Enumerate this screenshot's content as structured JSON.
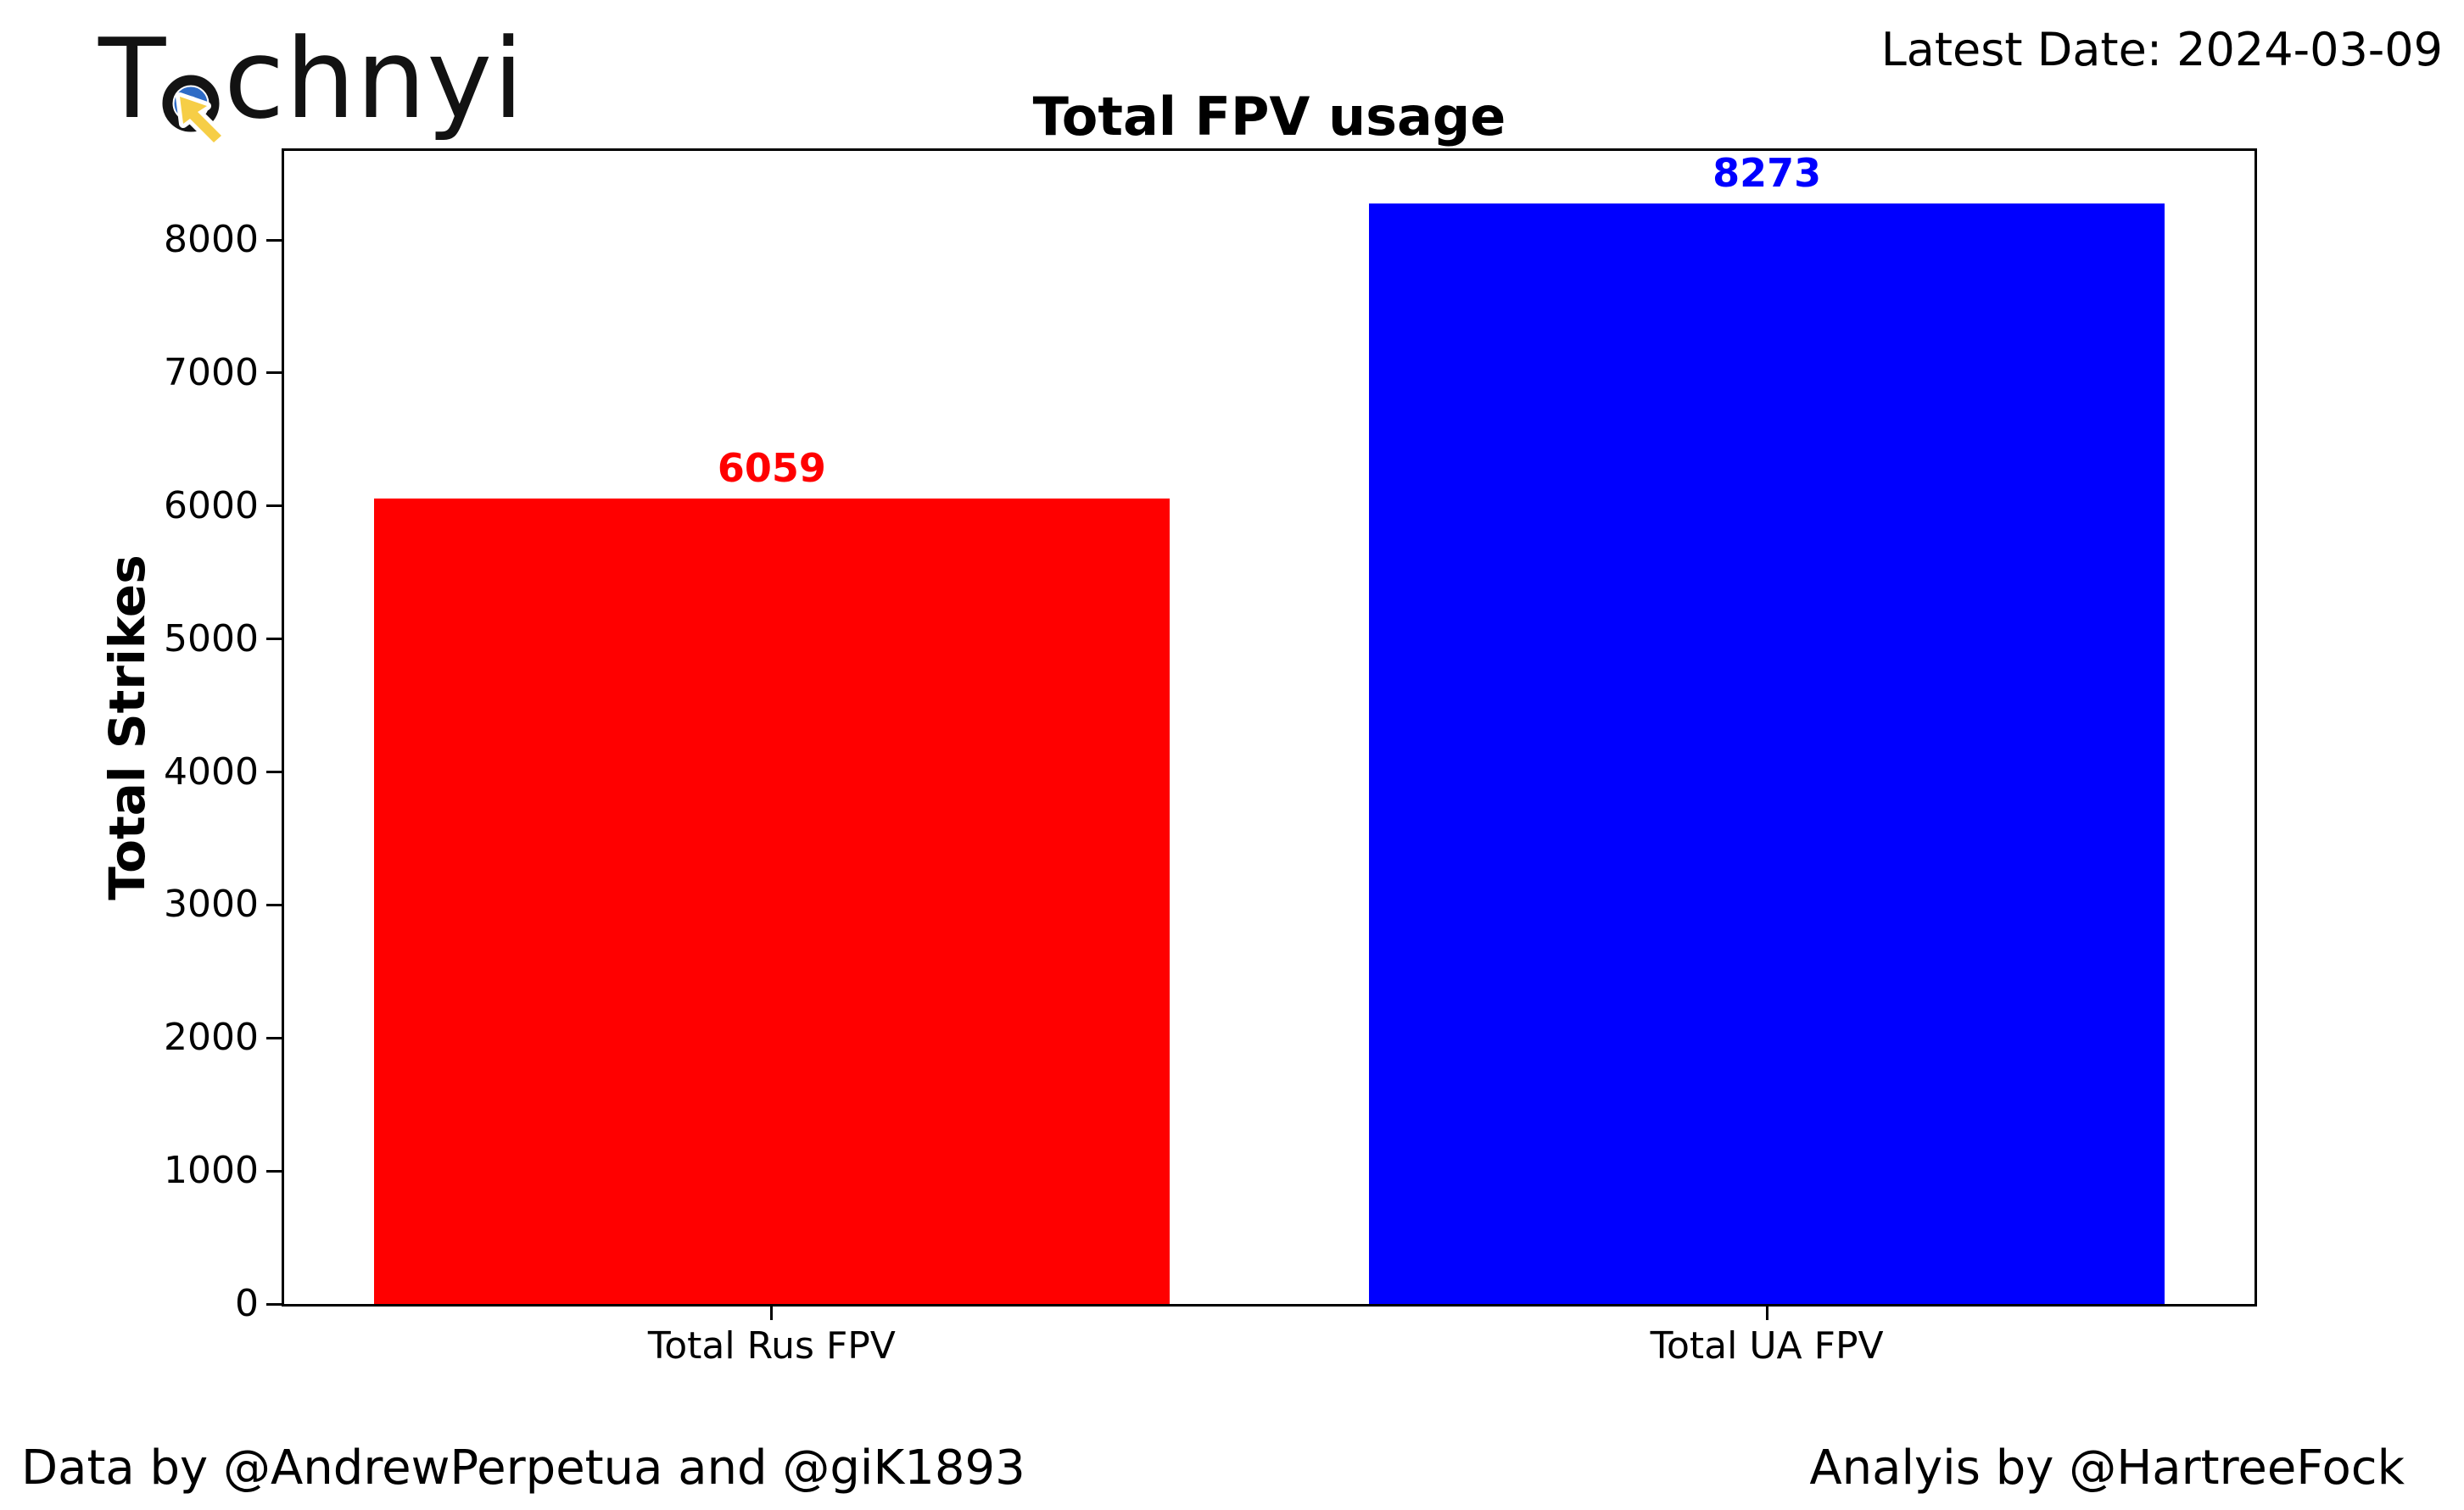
{
  "logo": {
    "brand_prefix": "T",
    "brand_suffix": "chnyi",
    "icon": "cursor-target-icon",
    "icon_colors": {
      "outer_ring": "#141414",
      "inner_ring": "#2e6bc6",
      "cursor": "#f6ce46"
    }
  },
  "header": {
    "latest_date": "Latest Date: 2024-03-09"
  },
  "chart_data": {
    "type": "bar",
    "title": "Total FPV usage",
    "ylabel": "Total Strikes",
    "xlabel": "",
    "categories": [
      "Total Rus FPV",
      "Total UA FPV"
    ],
    "values": [
      6059,
      8273
    ],
    "value_labels": [
      "6059",
      "8273"
    ],
    "bar_colors": [
      "#ff0000",
      "#0000ff"
    ],
    "value_label_colors": [
      "#ff0000",
      "#0000ff"
    ],
    "yticks": [
      0,
      1000,
      2000,
      3000,
      4000,
      5000,
      6000,
      7000,
      8000
    ],
    "ylim": [
      0,
      8670
    ],
    "bar_width_fraction": 0.8,
    "grid": false,
    "legend": "none"
  },
  "footer": {
    "left": "Data by @AndrewPerpetua and @giK1893",
    "right": "Analyis by @HartreeFock"
  }
}
